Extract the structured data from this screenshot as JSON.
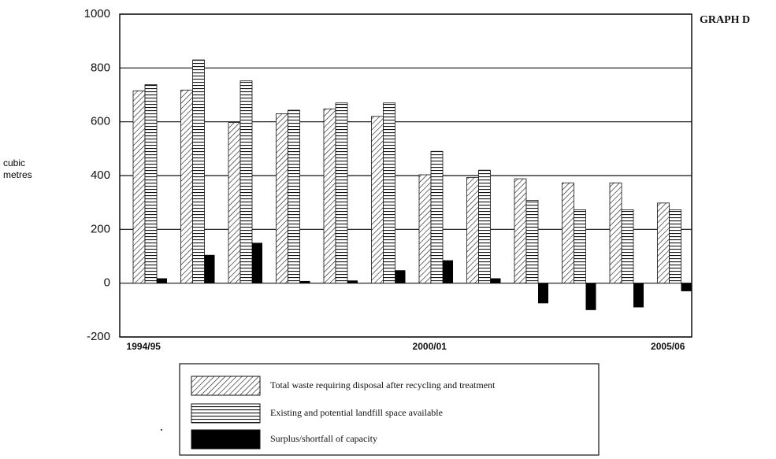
{
  "chart_data": {
    "type": "bar",
    "title": "GRAPH D",
    "y_label": "cubic metres",
    "categories": [
      "1994/95",
      null,
      null,
      null,
      null,
      null,
      "2000/01",
      null,
      null,
      null,
      null,
      "2005/06"
    ],
    "series": [
      {
        "name": "Total waste requiring disposal after recycling and treatment",
        "color": "#000000",
        "values": [
          715,
          718,
          597,
          630,
          648,
          620,
          403,
          393,
          388,
          373,
          373,
          298
        ]
      },
      {
        "name": "Existing and potential landfill space available",
        "color": "#000000",
        "values": [
          738,
          830,
          752,
          643,
          670,
          670,
          490,
          420,
          308,
          273,
          273,
          273
        ]
      },
      {
        "name": "Surplus/shortfall of capacity",
        "color": "#000000",
        "values": [
          18,
          105,
          150,
          8,
          10,
          48,
          85,
          18,
          -75,
          -100,
          -90,
          -30
        ]
      }
    ],
    "ylim": [
      -200,
      1000
    ],
    "yticks": [
      -200,
      0,
      200,
      400,
      600,
      800,
      1000
    ],
    "grid": true
  }
}
